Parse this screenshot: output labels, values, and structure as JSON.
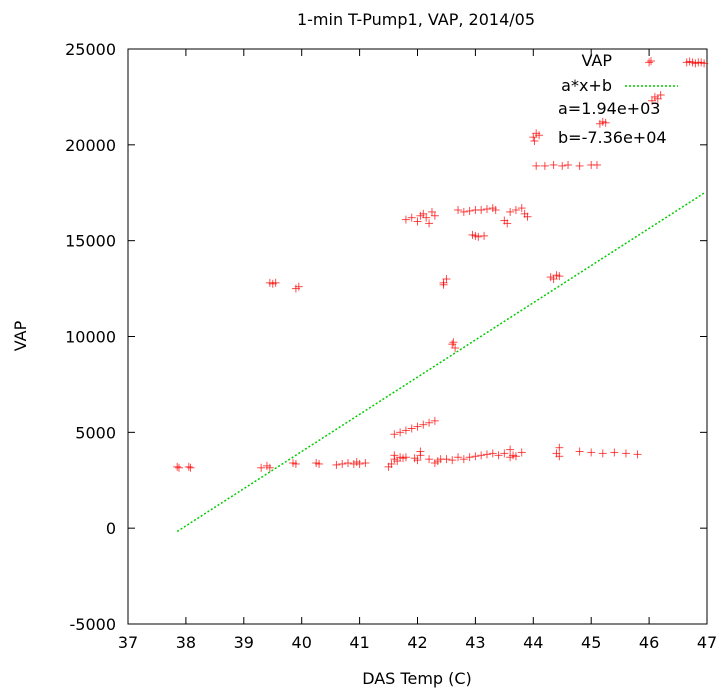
{
  "chart_data": {
    "type": "scatter",
    "title": "1-min T-Pump1, VAP, 2014/05",
    "xlabel": "DAS Temp (C)",
    "ylabel": "VAP",
    "xlim": [
      37,
      47
    ],
    "ylim": [
      -5000,
      25000
    ],
    "x_ticks": [
      "37",
      "38",
      "39",
      "40",
      "41",
      "42",
      "43",
      "44",
      "45",
      "46",
      "47"
    ],
    "y_ticks": [
      "-5000",
      "0",
      "5000",
      "10000",
      "15000",
      "20000",
      "25000"
    ],
    "grid": false,
    "legend_position": "top-right",
    "legend": {
      "scatter_label": "VAP",
      "fit_label": "a*x+b",
      "a_text": "a=1.94e+03",
      "b_text": "b=-7.36e+04"
    },
    "colors": {
      "points": "#ff0000",
      "fit": "#00cc00",
      "axes": "#000000"
    },
    "fit_line": {
      "a": 1940,
      "b": -73600,
      "x_range": [
        37.85,
        46.95
      ]
    },
    "series": [
      {
        "name": "VAP",
        "points": [
          [
            37.85,
            3200
          ],
          [
            37.88,
            3150
          ],
          [
            38.05,
            3200
          ],
          [
            38.08,
            3150
          ],
          [
            39.3,
            3150
          ],
          [
            39.4,
            3250
          ],
          [
            39.45,
            3150
          ],
          [
            39.85,
            3400
          ],
          [
            39.9,
            3350
          ],
          [
            40.25,
            3400
          ],
          [
            40.3,
            3350
          ],
          [
            40.6,
            3300
          ],
          [
            40.7,
            3350
          ],
          [
            40.8,
            3400
          ],
          [
            40.9,
            3350
          ],
          [
            40.95,
            3450
          ],
          [
            41.0,
            3350
          ],
          [
            41.1,
            3400
          ],
          [
            41.5,
            3200
          ],
          [
            41.55,
            3350
          ],
          [
            41.6,
            3600
          ],
          [
            41.6,
            3800
          ],
          [
            41.65,
            3500
          ],
          [
            41.7,
            3700
          ],
          [
            41.75,
            3650
          ],
          [
            41.8,
            3700
          ],
          [
            41.95,
            3650
          ],
          [
            42.0,
            3550
          ],
          [
            42.05,
            4000
          ],
          [
            42.05,
            3800
          ],
          [
            42.2,
            3600
          ],
          [
            42.3,
            3400
          ],
          [
            42.35,
            3500
          ],
          [
            42.4,
            3600
          ],
          [
            42.5,
            3600
          ],
          [
            42.6,
            3550
          ],
          [
            42.7,
            3700
          ],
          [
            42.8,
            3600
          ],
          [
            42.9,
            3700
          ],
          [
            43.0,
            3750
          ],
          [
            43.1,
            3800
          ],
          [
            43.2,
            3850
          ],
          [
            43.3,
            3900
          ],
          [
            43.4,
            3800
          ],
          [
            43.5,
            3900
          ],
          [
            43.6,
            3700
          ],
          [
            43.6,
            4100
          ],
          [
            43.65,
            3800
          ],
          [
            43.7,
            3750
          ],
          [
            43.8,
            3950
          ],
          [
            44.4,
            3900
          ],
          [
            44.45,
            4200
          ],
          [
            44.45,
            3750
          ],
          [
            44.8,
            4000
          ],
          [
            45.0,
            3950
          ],
          [
            45.2,
            3900
          ],
          [
            45.4,
            3950
          ],
          [
            45.6,
            3900
          ],
          [
            45.8,
            3850
          ],
          [
            41.6,
            4900
          ],
          [
            41.7,
            5000
          ],
          [
            41.8,
            5100
          ],
          [
            41.9,
            5200
          ],
          [
            42.0,
            5300
          ],
          [
            42.1,
            5400
          ],
          [
            42.2,
            5500
          ],
          [
            42.3,
            5600
          ],
          [
            39.45,
            12800
          ],
          [
            39.5,
            12750
          ],
          [
            39.55,
            12800
          ],
          [
            39.9,
            12500
          ],
          [
            39.95,
            12600
          ],
          [
            42.45,
            12800
          ],
          [
            42.5,
            13000
          ],
          [
            42.45,
            12700
          ],
          [
            42.6,
            9600
          ],
          [
            42.65,
            9400
          ],
          [
            42.62,
            9700
          ],
          [
            44.3,
            13100
          ],
          [
            44.35,
            13000
          ],
          [
            44.4,
            13200
          ],
          [
            44.45,
            13150
          ],
          [
            41.8,
            16100
          ],
          [
            41.9,
            16200
          ],
          [
            42.0,
            16000
          ],
          [
            42.05,
            16300
          ],
          [
            42.1,
            16400
          ],
          [
            42.15,
            16200
          ],
          [
            42.2,
            15900
          ],
          [
            42.25,
            16500
          ],
          [
            42.3,
            16300
          ],
          [
            42.7,
            16600
          ],
          [
            42.8,
            16500
          ],
          [
            42.9,
            16550
          ],
          [
            43.0,
            16600
          ],
          [
            43.1,
            16600
          ],
          [
            43.2,
            16650
          ],
          [
            43.3,
            16700
          ],
          [
            43.35,
            16600
          ],
          [
            43.5,
            16050
          ],
          [
            43.55,
            15900
          ],
          [
            43.6,
            16500
          ],
          [
            43.7,
            16600
          ],
          [
            43.8,
            16700
          ],
          [
            43.85,
            16400
          ],
          [
            43.9,
            16250
          ],
          [
            42.95,
            15300
          ],
          [
            43.0,
            15250
          ],
          [
            43.05,
            15200
          ],
          [
            43.15,
            15250
          ],
          [
            44.0,
            20400
          ],
          [
            44.05,
            20600
          ],
          [
            44.1,
            20500
          ],
          [
            44.02,
            20200
          ],
          [
            44.05,
            18900
          ],
          [
            44.2,
            18900
          ],
          [
            44.35,
            18950
          ],
          [
            44.5,
            18900
          ],
          [
            44.6,
            18950
          ],
          [
            44.8,
            18900
          ],
          [
            45.0,
            18950
          ],
          [
            45.1,
            18950
          ],
          [
            45.15,
            21100
          ],
          [
            45.2,
            21200
          ],
          [
            45.25,
            21150
          ],
          [
            46.05,
            22300
          ],
          [
            46.1,
            22500
          ],
          [
            46.2,
            22600
          ],
          [
            46.15,
            22400
          ],
          [
            46.65,
            24300
          ],
          [
            46.7,
            24350
          ],
          [
            46.75,
            24300
          ],
          [
            46.8,
            24250
          ],
          [
            46.85,
            24300
          ],
          [
            46.9,
            24300
          ],
          [
            46.95,
            24250
          ],
          [
            46.0,
            24300
          ]
        ]
      },
      {
        "name": "a*x+b"
      }
    ]
  }
}
